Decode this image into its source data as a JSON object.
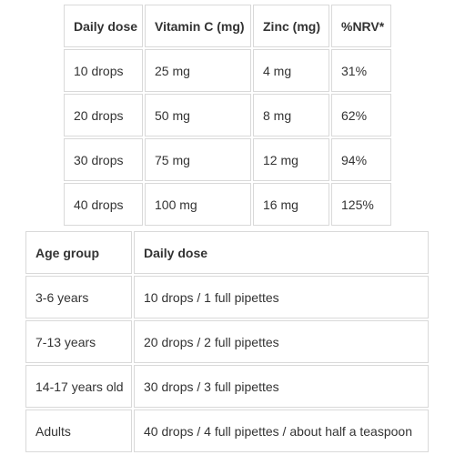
{
  "dose_table": {
    "headers": [
      "Daily dose",
      "Vitamin C (mg)",
      "Zinc (mg)",
      "%NRV*"
    ],
    "rows": [
      [
        "10 drops",
        "25 mg",
        "4 mg",
        "31%"
      ],
      [
        "20 drops",
        "50 mg",
        "8 mg",
        "62%"
      ],
      [
        "30 drops",
        "75 mg",
        "12 mg",
        "94%"
      ],
      [
        "40 drops",
        "100 mg",
        "16 mg",
        "125%"
      ]
    ]
  },
  "age_table": {
    "headers": [
      "Age group",
      "Daily dose"
    ],
    "rows": [
      [
        "3-6 years",
        "10 drops / 1 full pipettes"
      ],
      [
        "7-13 years",
        "20 drops / 2 full pipettes"
      ],
      [
        "14-17 years old",
        "30 drops / 3 full pipettes"
      ],
      [
        "Adults",
        "40 drops / 4 full pipettes / about half a teaspoon"
      ]
    ]
  }
}
